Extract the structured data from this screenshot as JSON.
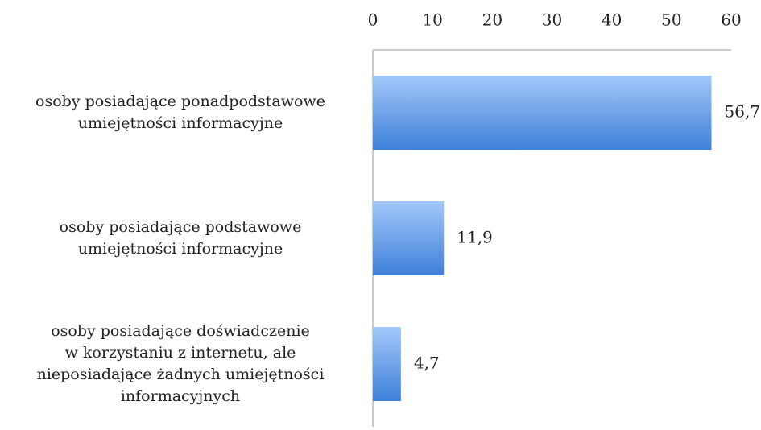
{
  "chart_data": {
    "type": "bar",
    "orientation": "horizontal",
    "categories": [
      "osoby posiadające ponadpodstawowe\numiejętności informacyjne",
      "osoby posiadające podstawowe\numiejętności informacyjne",
      "osoby posiadające doświadczenie\nw korzystaniu z internetu, ale\nnieposiadające żadnych umiejętności\ninformacyjnych"
    ],
    "values": [
      56.7,
      11.9,
      4.7
    ],
    "value_labels": [
      "56,7",
      "11,9",
      "4,7"
    ],
    "color": "#3f80d9",
    "xlim": [
      0,
      60
    ],
    "xticks": [
      0,
      10,
      20,
      30,
      40,
      50,
      60
    ]
  }
}
